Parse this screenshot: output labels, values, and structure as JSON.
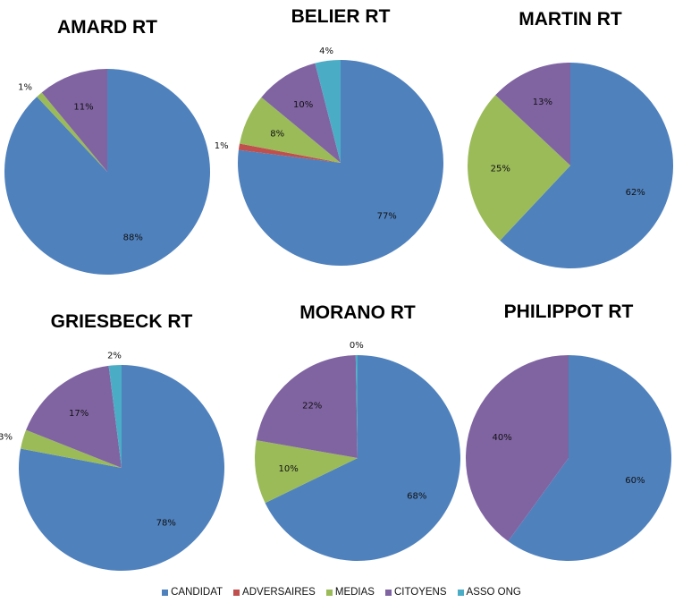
{
  "legend": {
    "items": [
      {
        "label": "CANDIDAT",
        "color": "#4f81bd"
      },
      {
        "label": "ADVERSAIRES",
        "color": "#c0504d"
      },
      {
        "label": "MEDIAS",
        "color": "#9bbb59"
      },
      {
        "label": "CITOYENS",
        "color": "#8064a2"
      },
      {
        "label": "ASSO ONG",
        "color": "#4bacc6"
      }
    ]
  },
  "chart_data": [
    {
      "type": "pie",
      "title": "AMARD RT",
      "slices": [
        {
          "name": "CANDIDAT",
          "value": 88,
          "label": "88%"
        },
        {
          "name": "ADVERSAIRES",
          "value": 0,
          "label": ""
        },
        {
          "name": "MEDIAS",
          "value": 1,
          "label": "1%"
        },
        {
          "name": "CITOYENS",
          "value": 11,
          "label": "11%"
        },
        {
          "name": "ASSO ONG",
          "value": 0,
          "label": ""
        }
      ]
    },
    {
      "type": "pie",
      "title": "BELIER RT",
      "slices": [
        {
          "name": "CANDIDAT",
          "value": 77,
          "label": "77%"
        },
        {
          "name": "ADVERSAIRES",
          "value": 1,
          "label": "1%"
        },
        {
          "name": "MEDIAS",
          "value": 8,
          "label": "8%"
        },
        {
          "name": "CITOYENS",
          "value": 10,
          "label": "10%"
        },
        {
          "name": "ASSO ONG",
          "value": 4,
          "label": "4%"
        }
      ]
    },
    {
      "type": "pie",
      "title": "MARTIN RT",
      "slices": [
        {
          "name": "CANDIDAT",
          "value": 62,
          "label": "62%"
        },
        {
          "name": "ADVERSAIRES",
          "value": 0,
          "label": ""
        },
        {
          "name": "MEDIAS",
          "value": 25,
          "label": "25%"
        },
        {
          "name": "CITOYENS",
          "value": 13,
          "label": "13%"
        },
        {
          "name": "ASSO ONG",
          "value": 0,
          "label": ""
        }
      ]
    },
    {
      "type": "pie",
      "title": "GRIESBECK RT",
      "slices": [
        {
          "name": "CANDIDAT",
          "value": 78,
          "label": "78%"
        },
        {
          "name": "ADVERSAIRES",
          "value": 0,
          "label": ""
        },
        {
          "name": "MEDIAS",
          "value": 3,
          "label": "3%"
        },
        {
          "name": "CITOYENS",
          "value": 17,
          "label": "17%"
        },
        {
          "name": "ASSO ONG",
          "value": 2,
          "label": "2%"
        }
      ]
    },
    {
      "type": "pie",
      "title": "MORANO RT",
      "slices": [
        {
          "name": "CANDIDAT",
          "value": 68,
          "label": "68%"
        },
        {
          "name": "ADVERSAIRES",
          "value": 0,
          "label": ""
        },
        {
          "name": "MEDIAS",
          "value": 10,
          "label": "10%"
        },
        {
          "name": "CITOYENS",
          "value": 22,
          "label": "22%"
        },
        {
          "name": "ASSO ONG",
          "value": 0.3,
          "label": "0%"
        }
      ]
    },
    {
      "type": "pie",
      "title": "PHILIPPOT RT",
      "slices": [
        {
          "name": "CANDIDAT",
          "value": 60,
          "label": "60%"
        },
        {
          "name": "ADVERSAIRES",
          "value": 0,
          "label": ""
        },
        {
          "name": "MEDIAS",
          "value": 0,
          "label": ""
        },
        {
          "name": "CITOYENS",
          "value": 40,
          "label": "40%"
        },
        {
          "name": "ASSO ONG",
          "value": 0,
          "label": ""
        }
      ]
    }
  ]
}
